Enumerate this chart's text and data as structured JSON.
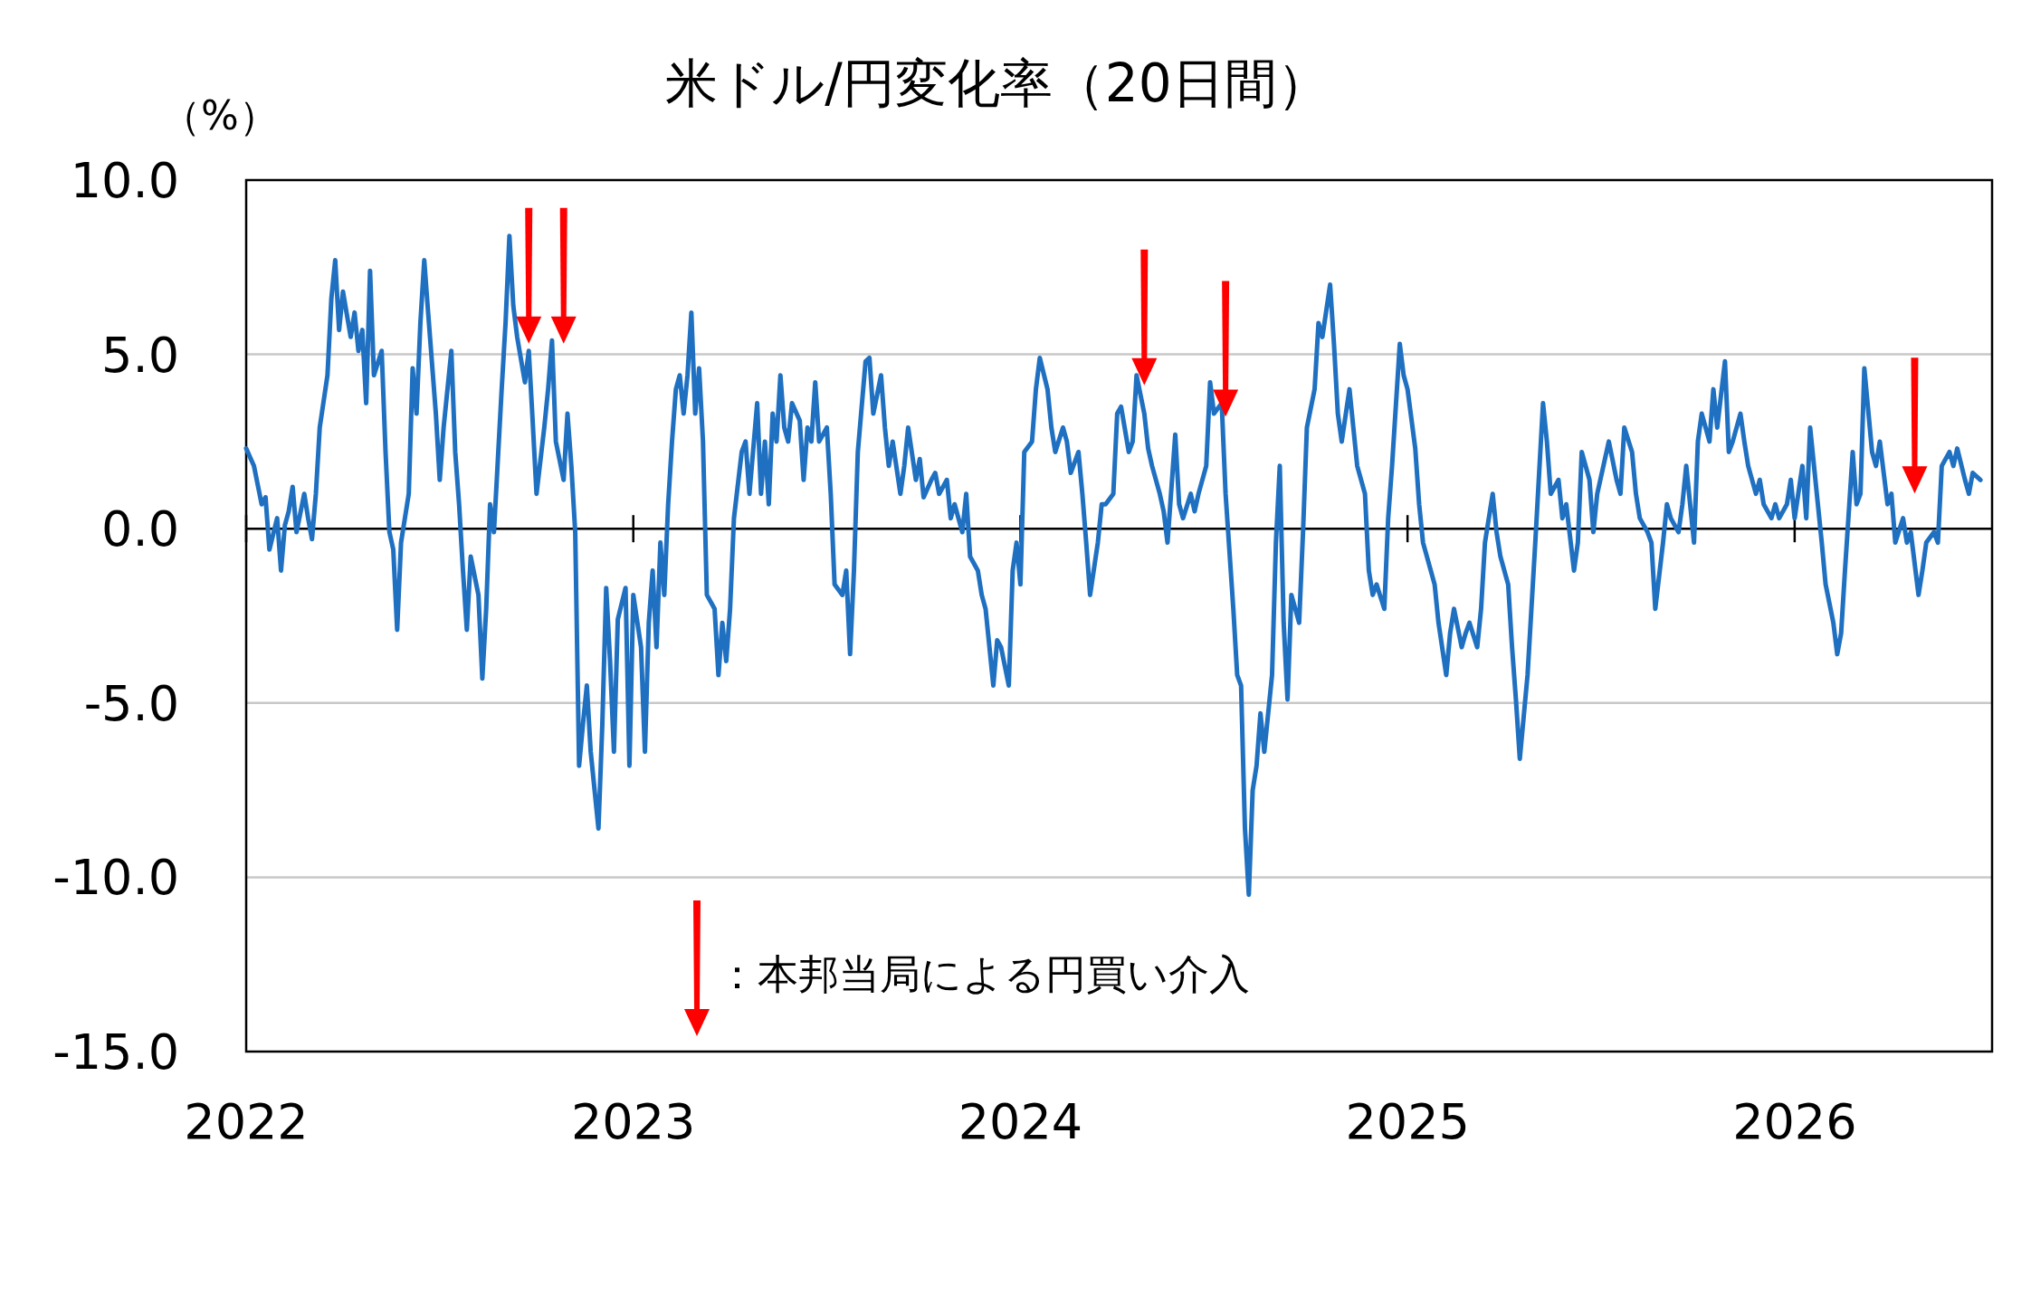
{
  "chart_data": {
    "type": "line",
    "title": "米ドル/円変化率（20日間）",
    "ylabel": "（%）",
    "xlim": [
      2022,
      2026.51
    ],
    "xticks": [
      2022,
      2023,
      2024,
      2025,
      2026
    ],
    "ylim": [
      -15,
      10
    ],
    "yticks": [
      {
        "value": 10,
        "label": "10.0"
      },
      {
        "value": 5,
        "label": "5.0"
      },
      {
        "value": 0,
        "label": "0.0"
      },
      {
        "value": -5,
        "label": "-5.0"
      },
      {
        "value": -10,
        "label": "-10.0"
      },
      {
        "value": -15,
        "label": "-15.0"
      }
    ],
    "grid": "y",
    "legend": "bottom left",
    "series": [
      {
        "color": "#1f70c1",
        "x": [
          2022.0,
          2022.02,
          2022.04,
          2022.05,
          2022.06,
          2022.08,
          2022.09,
          2022.1,
          2022.11,
          2022.12,
          2022.13,
          2022.15,
          2022.16,
          2022.17,
          2022.18,
          2022.19,
          2022.21,
          2022.22,
          2022.23,
          2022.24,
          2022.25,
          2022.27,
          2022.28,
          2022.29,
          2022.3,
          2022.31,
          2022.32,
          2022.33,
          2022.35,
          2022.36,
          2022.37,
          2022.38,
          2022.39,
          2022.4,
          2022.42,
          2022.43,
          2022.44,
          2022.45,
          2022.46,
          2022.47,
          2022.49,
          2022.5,
          2022.51,
          2022.53,
          2022.54,
          2022.55,
          2022.56,
          2022.57,
          2022.58,
          2022.6,
          2022.61,
          2022.62,
          2022.63,
          2022.64,
          2022.66,
          2022.67,
          2022.68,
          2022.69,
          2022.7,
          2022.72,
          2022.73,
          2022.74,
          2022.75,
          2022.77,
          2022.78,
          2022.79,
          2022.8,
          2022.82,
          2022.83,
          2022.84,
          2022.85,
          2022.86,
          2022.87,
          2022.88,
          2022.89,
          2022.91,
          2022.92,
          2022.93,
          2022.94,
          2022.95,
          2022.96,
          2022.98,
          2022.99,
          2023.0,
          2023.02,
          2023.03,
          2023.04,
          2023.05,
          2023.06,
          2023.07,
          2023.08,
          2023.09,
          2023.1,
          2023.11,
          2023.12,
          2023.13,
          2023.14,
          2023.15,
          2023.16,
          2023.17,
          2023.18,
          2023.19,
          2023.21,
          2023.22,
          2023.23,
          2023.24,
          2023.25,
          2023.26,
          2023.28,
          2023.29,
          2023.3,
          2023.32,
          2023.33,
          2023.34,
          2023.35,
          2023.36,
          2023.37,
          2023.38,
          2023.39,
          2023.4,
          2023.41,
          2023.43,
          2023.44,
          2023.45,
          2023.46,
          2023.47,
          2023.48,
          2023.5,
          2023.51,
          2023.52,
          2023.54,
          2023.55,
          2023.56,
          2023.57,
          2023.58,
          2023.6,
          2023.61,
          2023.62,
          2023.64,
          2023.65,
          2023.66,
          2023.67,
          2023.69,
          2023.7,
          2023.71,
          2023.73,
          2023.74,
          2023.75,
          2023.77,
          2023.78,
          2023.79,
          2023.81,
          2023.82,
          2023.83,
          2023.85,
          2023.86,
          2023.87,
          2023.89,
          2023.9,
          2023.91,
          2023.93,
          2023.94,
          2023.95,
          2023.97,
          2023.98,
          2023.99,
          2024.0,
          2024.01,
          2024.03,
          2024.04,
          2024.05,
          2024.07,
          2024.08,
          2024.09,
          2024.11,
          2024.12,
          2024.13,
          2024.15,
          2024.16,
          2024.17,
          2024.18,
          2024.2,
          2024.21,
          2024.22,
          2024.24,
          2024.25,
          2024.26,
          2024.28,
          2024.29,
          2024.3,
          2024.32,
          2024.33,
          2024.34,
          2024.36,
          2024.37,
          2024.38,
          2024.4,
          2024.41,
          2024.42,
          2024.44,
          2024.45,
          2024.46,
          2024.48,
          2024.49,
          2024.5,
          2024.52,
          2024.53,
          2024.55,
          2024.56,
          2024.57,
          2024.58,
          2024.59,
          2024.6,
          2024.61,
          2024.62,
          2024.63,
          2024.65,
          2024.66,
          2024.67,
          2024.68,
          2024.69,
          2024.7,
          2024.72,
          2024.73,
          2024.74,
          2024.76,
          2024.77,
          2024.78,
          2024.8,
          2024.81,
          2024.82,
          2024.83,
          2024.85,
          2024.86,
          2024.87,
          2024.89,
          2024.9,
          2024.91,
          2024.92,
          2024.94,
          2024.95,
          2024.96,
          2024.98,
          2024.99,
          2025.0,
          2025.02,
          2025.03,
          2025.04,
          2025.06,
          2025.07,
          2025.08,
          2025.1,
          2025.11,
          2025.12,
          2025.14,
          2025.15,
          2025.16,
          2025.18,
          2025.19,
          2025.2,
          2025.22,
          2025.23,
          2025.24,
          2025.26,
          2025.27,
          2025.28,
          2025.29,
          2025.31,
          2025.32,
          2025.33,
          2025.35,
          2025.36,
          2025.37,
          2025.39,
          2025.4,
          2025.41,
          2025.43,
          2025.44,
          2025.45,
          2025.47,
          2025.48,
          2025.49,
          2025.51,
          2025.52,
          2025.54,
          2025.55,
          2025.56,
          2025.58,
          2025.59,
          2025.6,
          2025.62,
          2025.63,
          2025.64,
          2025.66,
          2025.67,
          2025.68,
          2025.7,
          2025.71,
          2025.72,
          2025.74,
          2025.75,
          2025.76,
          2025.78,
          2025.79,
          2025.8,
          2025.82,
          2025.83,
          2025.84,
          2025.86,
          2025.87,
          2025.88,
          2025.9,
          2025.91,
          2025.92,
          2025.94,
          2025.95,
          2025.96,
          2025.98,
          2025.99,
          2026.0,
          2026.02,
          2026.03,
          2026.04,
          2026.06,
          2026.07,
          2026.08,
          2026.1,
          2026.11,
          2026.12,
          2026.13,
          2026.15,
          2026.16,
          2026.17,
          2026.18,
          2026.2,
          2026.21,
          2026.22,
          2026.24,
          2026.25,
          2026.26,
          2026.28,
          2026.29,
          2026.3,
          2026.32,
          2026.33,
          2026.34,
          2026.36,
          2026.37,
          2026.38,
          2026.4,
          2026.41,
          2026.42,
          2026.44,
          2026.45,
          2026.46,
          2026.48
        ],
        "values": [
          2.3,
          1.8,
          0.7,
          0.9,
          -0.6,
          0.3,
          -1.2,
          0.1,
          0.5,
          1.2,
          -0.1,
          1.0,
          0.3,
          -0.3,
          1.0,
          2.9,
          4.4,
          6.6,
          7.7,
          5.7,
          6.8,
          5.5,
          6.2,
          5.1,
          5.7,
          3.6,
          7.4,
          4.4,
          5.1,
          2.2,
          -0.1,
          -0.6,
          -2.9,
          -0.4,
          1.0,
          4.6,
          3.3,
          5.9,
          7.7,
          6.2,
          3.3,
          1.4,
          2.9,
          5.1,
          2.2,
          0.7,
          -1.2,
          -2.9,
          -0.8,
          -1.9,
          -4.3,
          -2.3,
          0.7,
          -0.1,
          4.0,
          5.9,
          8.4,
          6.4,
          5.5,
          4.2,
          5.1,
          3.1,
          1.0,
          2.9,
          4.0,
          5.4,
          2.5,
          1.4,
          3.3,
          1.8,
          -0.1,
          -6.8,
          -5.6,
          -4.5,
          -6.4,
          -8.6,
          -5.6,
          -1.7,
          -3.8,
          -6.4,
          -2.6,
          -1.7,
          -6.8,
          -1.9,
          -3.4,
          -6.4,
          -2.7,
          -1.2,
          -3.4,
          -0.4,
          -1.9,
          0.7,
          2.5,
          4.0,
          4.4,
          3.3,
          4.4,
          6.2,
          3.3,
          4.6,
          2.5,
          -1.9,
          -2.3,
          -4.2,
          -2.7,
          -3.8,
          -2.3,
          0.3,
          2.2,
          2.5,
          1.0,
          3.6,
          1.0,
          2.5,
          0.7,
          3.3,
          2.5,
          4.4,
          2.9,
          2.5,
          3.6,
          3.1,
          1.4,
          2.9,
          2.5,
          4.2,
          2.5,
          2.9,
          1.0,
          -1.6,
          -1.9,
          -1.2,
          -3.6,
          -1.2,
          2.2,
          4.8,
          4.9,
          3.3,
          4.4,
          2.9,
          1.8,
          2.5,
          1.0,
          1.8,
          2.9,
          1.4,
          2.0,
          0.9,
          1.4,
          1.6,
          1.0,
          1.4,
          0.3,
          0.7,
          -0.1,
          1.0,
          -0.8,
          -1.2,
          -1.9,
          -2.3,
          -4.5,
          -3.2,
          -3.4,
          -4.5,
          -1.2,
          -0.4,
          -1.6,
          2.2,
          2.5,
          4.0,
          4.9,
          4.0,
          2.9,
          2.2,
          2.9,
          2.5,
          1.6,
          2.2,
          1.0,
          -0.4,
          -1.9,
          -0.4,
          0.7,
          0.7,
          1.0,
          3.3,
          3.5,
          2.2,
          2.5,
          4.4,
          3.3,
          2.3,
          1.8,
          1.0,
          0.5,
          -0.4,
          2.7,
          0.7,
          0.3,
          1.0,
          0.5,
          1.0,
          1.8,
          4.2,
          3.3,
          3.6,
          1.0,
          -2.3,
          -4.2,
          -4.5,
          -8.6,
          -10.5,
          -7.5,
          -6.8,
          -5.3,
          -6.4,
          -4.2,
          -0.4,
          1.8,
          -2.7,
          -4.9,
          -1.9,
          -2.7,
          -0.1,
          2.9,
          4.0,
          5.9,
          5.5,
          7.0,
          5.3,
          3.3,
          2.5,
          4.0,
          2.9,
          1.8,
          1.0,
          -1.2,
          -1.9,
          -1.6,
          -2.3,
          0.3,
          1.8,
          5.3,
          4.4,
          4.0,
          2.3,
          0.7,
          -0.4,
          -1.2,
          -1.6,
          -2.7,
          -4.2,
          -3.0,
          -2.3,
          -3.4,
          -3.0,
          -2.7,
          -3.4,
          -2.3,
          -0.4,
          1.0,
          -0.1,
          -0.8,
          -1.6,
          -3.4,
          -4.9,
          -6.6,
          -4.2,
          -2.3,
          -0.4,
          3.6,
          2.5,
          1.0,
          1.4,
          0.3,
          0.7,
          -1.2,
          -0.4,
          2.2,
          1.4,
          -0.1,
          1.0,
          2.0,
          2.5,
          1.4,
          1.0,
          2.9,
          2.2,
          1.0,
          0.3,
          -0.1,
          -0.4,
          -2.3,
          -0.4,
          0.7,
          0.3,
          -0.1,
          0.7,
          1.8,
          -0.4,
          2.5,
          3.3,
          2.5,
          4.0,
          2.9,
          4.8,
          2.2,
          2.5,
          3.3,
          2.5,
          1.8,
          1.0,
          1.4,
          0.7,
          0.3,
          0.7,
          0.3,
          0.7,
          1.4,
          0.3,
          1.8,
          0.3,
          2.9,
          0.7,
          -0.4,
          -1.6,
          -2.7,
          -3.6,
          -3.0,
          -1.2,
          2.2,
          0.7,
          1.0,
          4.6,
          2.2,
          1.8,
          2.5,
          0.7,
          1.0,
          -0.4,
          0.3,
          -0.4,
          -0.1,
          -1.9,
          -1.2,
          -0.4,
          -0.1,
          -0.4,
          1.8,
          2.2,
          1.8,
          2.3,
          1.4,
          1.0,
          1.6,
          1.4
        ]
      },
      {
        "type": "scatter",
        "marker": "triangle",
        "name": "：本邦当局による円買い介入",
        "color": "#ff0000",
        "x": [
          2022.73,
          2022.82,
          2024.32,
          2024.53,
          2026.31
        ],
        "values": [
          5.7,
          5.7,
          4.5,
          3.6,
          1.4
        ]
      }
    ]
  }
}
